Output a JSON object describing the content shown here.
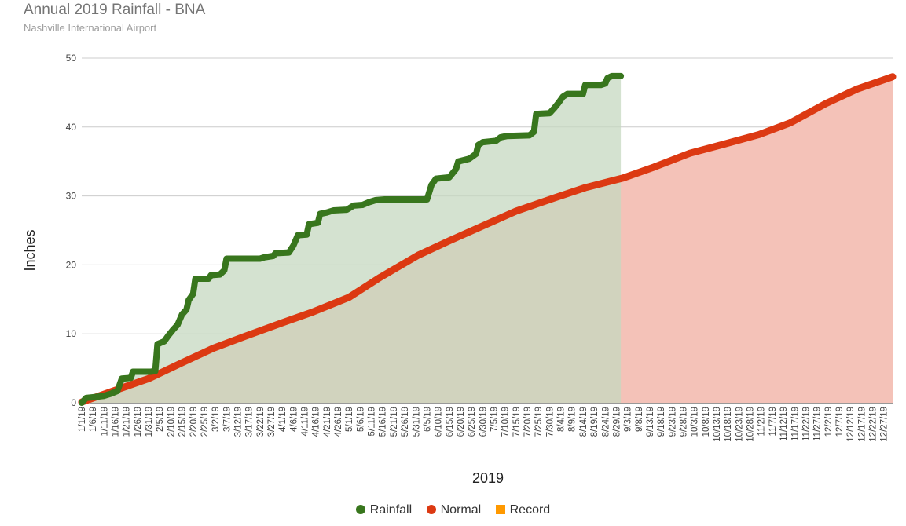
{
  "chart_data": {
    "type": "area",
    "title": "Annual 2019 Rainfall - BNA",
    "subtitle": "Nashville International Airport",
    "xlabel": "2019",
    "ylabel": "Inches",
    "ylim": [
      0,
      50
    ],
    "yticks": [
      0,
      10,
      20,
      30,
      40,
      50
    ],
    "xticks": [
      "1/1/19",
      "1/6/19",
      "1/11/19",
      "1/16/19",
      "1/21/19",
      "1/26/19",
      "1/31/19",
      "2/5/19",
      "2/10/19",
      "2/15/19",
      "2/20/19",
      "2/25/19",
      "3/2/19",
      "3/7/19",
      "3/12/19",
      "3/17/19",
      "3/22/19",
      "3/27/19",
      "4/1/19",
      "4/6/19",
      "4/11/19",
      "4/16/19",
      "4/21/19",
      "4/26/19",
      "5/1/19",
      "5/6/19",
      "5/11/19",
      "5/16/19",
      "5/21/19",
      "5/26/19",
      "5/31/19",
      "6/5/19",
      "6/10/19",
      "6/15/19",
      "6/20/19",
      "6/25/19",
      "6/30/19",
      "7/5/19",
      "7/10/19",
      "7/15/19",
      "7/20/19",
      "7/25/19",
      "7/30/19",
      "8/4/19",
      "8/9/19",
      "8/14/19",
      "8/19/19",
      "8/24/19",
      "8/29/19",
      "9/3/19",
      "9/8/19",
      "9/13/19",
      "9/18/19",
      "9/23/19",
      "9/28/19",
      "10/3/19",
      "10/8/19",
      "10/13/19",
      "10/18/19",
      "10/23/19",
      "10/28/19",
      "11/2/19",
      "11/7/19",
      "11/12/19",
      "11/17/19",
      "11/22/19",
      "11/27/19",
      "12/2/19",
      "12/7/19",
      "12/12/19",
      "12/17/19",
      "12/22/19",
      "12/27/19"
    ],
    "grid": true,
    "legend_position": "bottom",
    "series": [
      {
        "name": "Rainfall",
        "color": "#38761d",
        "fill": "#c6d8c0",
        "points": [
          [
            "1/1/19",
            0.0
          ],
          [
            "1/3/19",
            0.7
          ],
          [
            "1/6/19",
            0.8
          ],
          [
            "1/11/19",
            1.0
          ],
          [
            "1/14/19",
            1.3
          ],
          [
            "1/17/19",
            1.7
          ],
          [
            "1/19/19",
            3.5
          ],
          [
            "1/23/19",
            3.6
          ],
          [
            "1/24/19",
            4.5
          ],
          [
            "2/1/19",
            4.5
          ],
          [
            "2/3/19",
            4.6
          ],
          [
            "2/4/19",
            8.5
          ],
          [
            "2/7/19",
            8.9
          ],
          [
            "2/9/19",
            9.8
          ],
          [
            "2/11/19",
            10.6
          ],
          [
            "2/13/19",
            11.3
          ],
          [
            "2/15/19",
            12.8
          ],
          [
            "2/17/19",
            13.5
          ],
          [
            "2/18/19",
            14.9
          ],
          [
            "2/20/19",
            15.8
          ],
          [
            "2/21/19",
            18.0
          ],
          [
            "2/27/19",
            18.0
          ],
          [
            "2/28/19",
            18.5
          ],
          [
            "3/4/19",
            18.6
          ],
          [
            "3/6/19",
            19.2
          ],
          [
            "3/7/19",
            20.9
          ],
          [
            "3/22/19",
            20.9
          ],
          [
            "3/24/19",
            21.1
          ],
          [
            "3/28/19",
            21.3
          ],
          [
            "3/29/19",
            21.7
          ],
          [
            "4/4/19",
            21.8
          ],
          [
            "4/6/19",
            22.8
          ],
          [
            "4/8/19",
            24.3
          ],
          [
            "4/12/19",
            24.4
          ],
          [
            "4/13/19",
            25.9
          ],
          [
            "4/17/19",
            26.1
          ],
          [
            "4/18/19",
            27.4
          ],
          [
            "4/21/19",
            27.6
          ],
          [
            "4/24/19",
            27.9
          ],
          [
            "4/30/19",
            28.0
          ],
          [
            "5/3/19",
            28.6
          ],
          [
            "5/7/19",
            28.7
          ],
          [
            "5/10/19",
            29.1
          ],
          [
            "5/13/19",
            29.4
          ],
          [
            "5/17/19",
            29.5
          ],
          [
            "6/5/19",
            29.5
          ],
          [
            "6/7/19",
            31.6
          ],
          [
            "6/9/19",
            32.5
          ],
          [
            "6/15/19",
            32.7
          ],
          [
            "6/18/19",
            33.9
          ],
          [
            "6/19/19",
            35.0
          ],
          [
            "6/24/19",
            35.4
          ],
          [
            "6/27/19",
            36.1
          ],
          [
            "6/28/19",
            37.4
          ],
          [
            "6/30/19",
            37.8
          ],
          [
            "7/6/19",
            38.0
          ],
          [
            "7/8/19",
            38.5
          ],
          [
            "7/11/19",
            38.7
          ],
          [
            "7/21/19",
            38.8
          ],
          [
            "7/23/19",
            39.3
          ],
          [
            "7/24/19",
            41.9
          ],
          [
            "7/30/19",
            42.0
          ],
          [
            "8/1/19",
            42.7
          ],
          [
            "8/3/19",
            43.5
          ],
          [
            "8/5/19",
            44.4
          ],
          [
            "8/7/19",
            44.8
          ],
          [
            "8/14/19",
            44.8
          ],
          [
            "8/15/19",
            46.1
          ],
          [
            "8/22/19",
            46.1
          ],
          [
            "8/24/19",
            46.3
          ],
          [
            "8/25/19",
            47.1
          ],
          [
            "8/27/19",
            47.4
          ],
          [
            "8/31/19",
            47.4
          ]
        ]
      },
      {
        "name": "Normal",
        "color": "#dc3912",
        "fill": "#f4c2b8",
        "points": [
          [
            "1/1/19",
            0.1
          ],
          [
            "1/15/19",
            1.7
          ],
          [
            "1/31/19",
            3.5
          ],
          [
            "2/15/19",
            5.8
          ],
          [
            "3/1/19",
            7.9
          ],
          [
            "3/15/19",
            9.6
          ],
          [
            "4/1/19",
            11.6
          ],
          [
            "4/15/19",
            13.2
          ],
          [
            "5/1/19",
            15.3
          ],
          [
            "5/15/19",
            18.2
          ],
          [
            "6/1/19",
            21.4
          ],
          [
            "6/15/19",
            23.5
          ],
          [
            "7/1/19",
            25.8
          ],
          [
            "7/15/19",
            27.8
          ],
          [
            "8/1/19",
            29.7
          ],
          [
            "8/15/19",
            31.2
          ],
          [
            "9/1/19",
            32.6
          ],
          [
            "9/15/19",
            34.2
          ],
          [
            "10/1/19",
            36.2
          ],
          [
            "10/15/19",
            37.4
          ],
          [
            "11/1/19",
            38.9
          ],
          [
            "11/15/19",
            40.6
          ],
          [
            "12/1/19",
            43.4
          ],
          [
            "12/15/19",
            45.5
          ],
          [
            "12/31/19",
            47.3
          ]
        ]
      },
      {
        "name": "Record",
        "color": "#ff9900",
        "points": []
      }
    ]
  }
}
